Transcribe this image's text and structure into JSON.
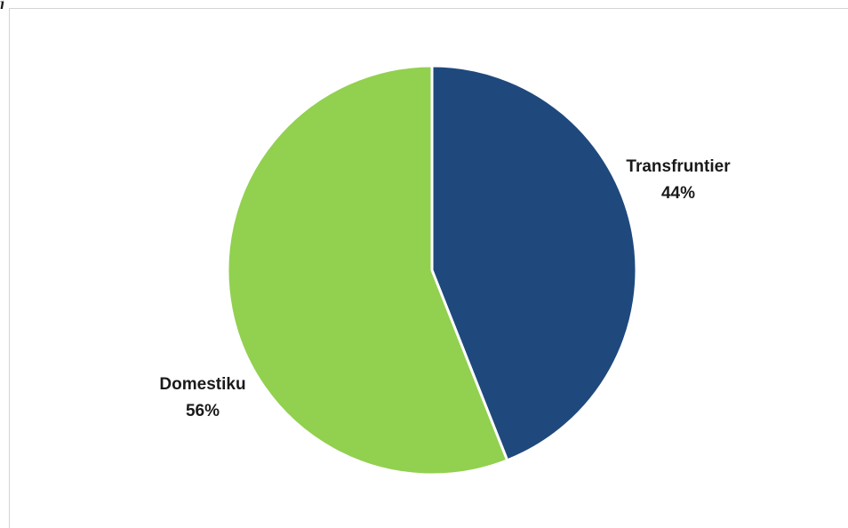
{
  "page": {
    "corner_glyph": "j"
  },
  "chart_data": {
    "type": "pie",
    "title": "",
    "categories": [
      "Transfruntier",
      "Domestiku"
    ],
    "values": [
      44,
      56
    ],
    "value_labels": [
      "44%",
      "56%"
    ],
    "colors": [
      "#1f497d",
      "#92d050"
    ],
    "slice_border_color": "#ffffff",
    "start_angle": "12 o'clock",
    "direction": "clockwise",
    "legend": "none (data labels beside slices)"
  }
}
